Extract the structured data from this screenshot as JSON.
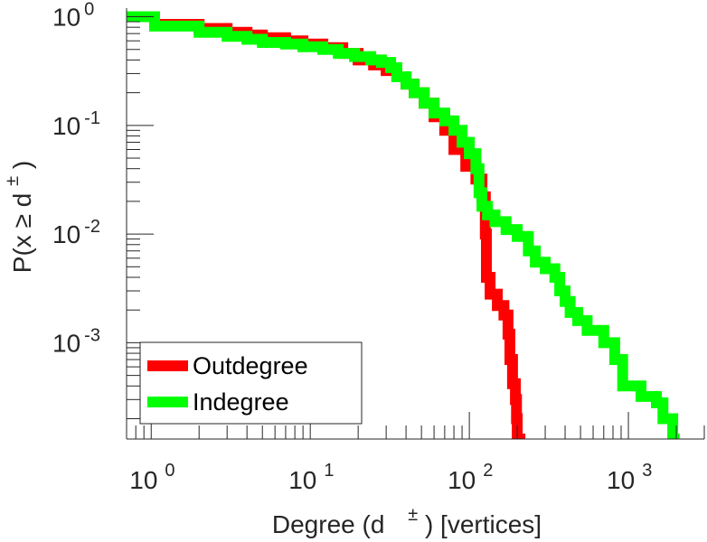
{
  "chart_data": {
    "type": "line",
    "scale": "log-log",
    "grid": false,
    "legend_position": "bottom-left",
    "xlabel_main": "Degree (d",
    "xlabel_sup": "±",
    "xlabel_tail": ") [vertices]",
    "ylabel_main": "P(x ≥ d",
    "ylabel_sup": "±",
    "ylabel_tail": ")",
    "xlim": [
      0.7,
      3000
    ],
    "ylim": [
      0.00013,
      1.2
    ],
    "x_ticks": [
      {
        "value": 1,
        "base": "10",
        "exp": "0"
      },
      {
        "value": 10,
        "base": "10",
        "exp": "1"
      },
      {
        "value": 100,
        "base": "10",
        "exp": "2"
      },
      {
        "value": 1000,
        "base": "10",
        "exp": "3"
      }
    ],
    "y_ticks": [
      {
        "value": 1,
        "base": "10",
        "exp": "0"
      },
      {
        "value": 0.1,
        "base": "10",
        "exp": "-1"
      },
      {
        "value": 0.01,
        "base": "10",
        "exp": "-2"
      },
      {
        "value": 0.001,
        "base": "10",
        "exp": "-3"
      }
    ],
    "series": [
      {
        "name": "Outdegree",
        "color": "#ff0000",
        "points": [
          [
            0.7,
            1.0
          ],
          [
            1.05,
            1.0
          ],
          [
            1.05,
            0.85
          ],
          [
            2,
            0.85
          ],
          [
            2,
            0.78
          ],
          [
            3,
            0.78
          ],
          [
            3,
            0.72
          ],
          [
            4,
            0.72
          ],
          [
            4,
            0.68
          ],
          [
            5,
            0.68
          ],
          [
            5,
            0.64
          ],
          [
            7,
            0.64
          ],
          [
            7,
            0.6
          ],
          [
            9,
            0.6
          ],
          [
            9,
            0.56
          ],
          [
            12,
            0.56
          ],
          [
            12,
            0.52
          ],
          [
            16,
            0.52
          ],
          [
            16,
            0.46
          ],
          [
            20,
            0.46
          ],
          [
            20,
            0.4
          ],
          [
            25,
            0.4
          ],
          [
            25,
            0.36
          ],
          [
            30,
            0.36
          ],
          [
            30,
            0.32
          ],
          [
            35,
            0.32
          ],
          [
            35,
            0.28
          ],
          [
            40,
            0.28
          ],
          [
            40,
            0.24
          ],
          [
            45,
            0.24
          ],
          [
            45,
            0.2
          ],
          [
            52,
            0.2
          ],
          [
            52,
            0.16
          ],
          [
            60,
            0.16
          ],
          [
            60,
            0.12
          ],
          [
            70,
            0.12
          ],
          [
            70,
            0.09
          ],
          [
            80,
            0.09
          ],
          [
            80,
            0.06
          ],
          [
            95,
            0.06
          ],
          [
            95,
            0.042
          ],
          [
            110,
            0.042
          ],
          [
            110,
            0.032
          ],
          [
            120,
            0.032
          ],
          [
            120,
            0.022
          ],
          [
            126,
            0.022
          ],
          [
            126,
            0.01
          ],
          [
            128,
            0.01
          ],
          [
            128,
            0.004
          ],
          [
            135,
            0.004
          ],
          [
            135,
            0.0028
          ],
          [
            150,
            0.0028
          ],
          [
            150,
            0.0022
          ],
          [
            165,
            0.0022
          ],
          [
            165,
            0.0018
          ],
          [
            175,
            0.0018
          ],
          [
            175,
            0.0012
          ],
          [
            180,
            0.0012
          ],
          [
            180,
            0.0007
          ],
          [
            187,
            0.0007
          ],
          [
            187,
            0.00042
          ],
          [
            195,
            0.00042
          ],
          [
            195,
            0.0003
          ],
          [
            198,
            0.0003
          ],
          [
            198,
            0.0002
          ],
          [
            200,
            0.0002
          ],
          [
            200,
            0.00013
          ],
          [
            225,
            0.00013
          ]
        ]
      },
      {
        "name": "Indegree",
        "color": "#00ff00",
        "points": [
          [
            0.7,
            1.0
          ],
          [
            1.05,
            1.0
          ],
          [
            1.05,
            0.82
          ],
          [
            2,
            0.82
          ],
          [
            2,
            0.72
          ],
          [
            3,
            0.72
          ],
          [
            3,
            0.66
          ],
          [
            4,
            0.66
          ],
          [
            4,
            0.62
          ],
          [
            5,
            0.62
          ],
          [
            5,
            0.58
          ],
          [
            7,
            0.58
          ],
          [
            7,
            0.56
          ],
          [
            9,
            0.56
          ],
          [
            9,
            0.53
          ],
          [
            12,
            0.53
          ],
          [
            12,
            0.5
          ],
          [
            15,
            0.5
          ],
          [
            15,
            0.46
          ],
          [
            19,
            0.46
          ],
          [
            19,
            0.43
          ],
          [
            24,
            0.43
          ],
          [
            24,
            0.4
          ],
          [
            28,
            0.4
          ],
          [
            28,
            0.38
          ],
          [
            32,
            0.38
          ],
          [
            32,
            0.34
          ],
          [
            35,
            0.34
          ],
          [
            35,
            0.28
          ],
          [
            40,
            0.28
          ],
          [
            40,
            0.24
          ],
          [
            45,
            0.24
          ],
          [
            45,
            0.2
          ],
          [
            52,
            0.2
          ],
          [
            52,
            0.16
          ],
          [
            60,
            0.16
          ],
          [
            60,
            0.13
          ],
          [
            70,
            0.13
          ],
          [
            70,
            0.11
          ],
          [
            80,
            0.11
          ],
          [
            80,
            0.09
          ],
          [
            90,
            0.09
          ],
          [
            90,
            0.07
          ],
          [
            100,
            0.07
          ],
          [
            100,
            0.055
          ],
          [
            110,
            0.055
          ],
          [
            110,
            0.04
          ],
          [
            115,
            0.04
          ],
          [
            115,
            0.024
          ],
          [
            120,
            0.024
          ],
          [
            120,
            0.018
          ],
          [
            130,
            0.018
          ],
          [
            130,
            0.015
          ],
          [
            145,
            0.015
          ],
          [
            145,
            0.013
          ],
          [
            170,
            0.013
          ],
          [
            170,
            0.011
          ],
          [
            200,
            0.011
          ],
          [
            200,
            0.0095
          ],
          [
            235,
            0.0095
          ],
          [
            235,
            0.007
          ],
          [
            260,
            0.007
          ],
          [
            260,
            0.0055
          ],
          [
            300,
            0.0055
          ],
          [
            300,
            0.0048
          ],
          [
            345,
            0.0048
          ],
          [
            345,
            0.004
          ],
          [
            370,
            0.004
          ],
          [
            370,
            0.003
          ],
          [
            400,
            0.003
          ],
          [
            400,
            0.0024
          ],
          [
            430,
            0.0024
          ],
          [
            430,
            0.0019
          ],
          [
            480,
            0.0019
          ],
          [
            480,
            0.0016
          ],
          [
            550,
            0.0016
          ],
          [
            550,
            0.0013
          ],
          [
            700,
            0.0013
          ],
          [
            700,
            0.001
          ],
          [
            820,
            0.001
          ],
          [
            820,
            0.0007
          ],
          [
            920,
            0.0007
          ],
          [
            920,
            0.0004
          ],
          [
            1200,
            0.0004
          ],
          [
            1200,
            0.00032
          ],
          [
            1500,
            0.00032
          ],
          [
            1500,
            0.00028
          ],
          [
            1650,
            0.00028
          ],
          [
            1650,
            0.0002
          ],
          [
            1900,
            0.0002
          ],
          [
            1900,
            0.00013
          ],
          [
            2100,
            0.00013
          ]
        ]
      }
    ]
  }
}
